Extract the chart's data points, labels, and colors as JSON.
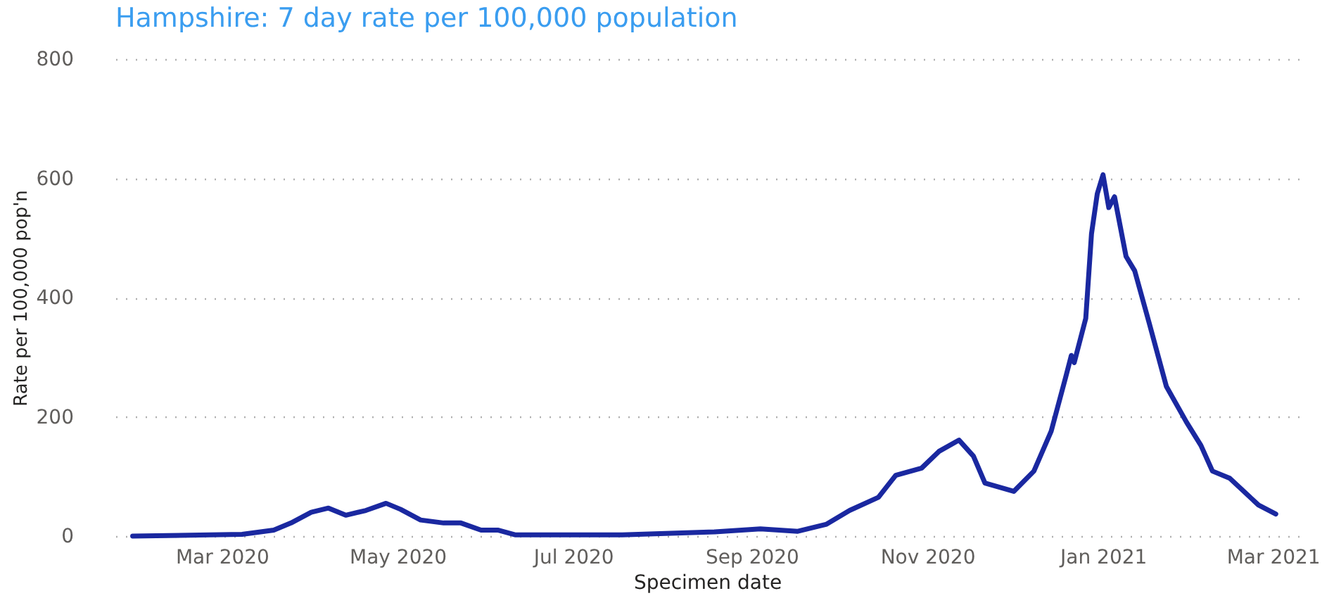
{
  "chart_data": {
    "type": "line",
    "title": "Hampshire: 7 day rate per 100,000 population",
    "xlabel": "Specimen date",
    "ylabel": "Rate per 100,000 pop'n",
    "x": [
      "2020-01-30",
      "2020-03-08",
      "2020-03-19",
      "2020-03-25",
      "2020-04-01",
      "2020-04-07",
      "2020-04-13",
      "2020-04-20",
      "2020-04-27",
      "2020-05-02",
      "2020-05-09",
      "2020-05-17",
      "2020-05-23",
      "2020-05-30",
      "2020-06-05",
      "2020-06-11",
      "2020-07-18",
      "2020-08-19",
      "2020-09-04",
      "2020-09-17",
      "2020-09-27",
      "2020-10-05",
      "2020-10-15",
      "2020-10-21",
      "2020-10-30",
      "2020-11-05",
      "2020-11-12",
      "2020-11-17",
      "2020-11-21",
      "2020-12-01",
      "2020-12-08",
      "2020-12-14",
      "2020-12-19",
      "2020-12-21",
      "2020-12-22",
      "2020-12-26",
      "2020-12-28",
      "2020-12-30",
      "2021-01-01",
      "2021-01-03",
      "2021-01-05",
      "2021-01-09",
      "2021-01-12",
      "2021-01-17",
      "2021-01-23",
      "2021-01-30",
      "2021-02-04",
      "2021-02-08",
      "2021-02-14",
      "2021-02-24",
      "2021-03-02"
    ],
    "series": [
      {
        "color": "#1a28a0",
        "values": [
          0,
          3,
          10,
          22,
          40,
          47,
          35,
          43,
          55,
          45,
          27,
          22,
          22,
          10,
          10,
          2,
          2,
          7,
          12,
          8,
          20,
          43,
          65,
          102,
          114,
          142,
          161,
          134,
          89,
          75,
          109,
          176,
          266,
          303,
          291,
          365,
          507,
          574,
          606,
          551,
          569,
          469,
          445,
          358,
          251,
          191,
          152,
          109,
          97,
          52,
          37
        ]
      }
    ],
    "xlim": [
      "2020-01-24",
      "2021-03-10"
    ],
    "xticks": [
      {
        "value": "2020-03-01",
        "label": "Mar 2020"
      },
      {
        "value": "2020-05-01",
        "label": "May 2020"
      },
      {
        "value": "2020-07-01",
        "label": "Jul 2020"
      },
      {
        "value": "2020-09-01",
        "label": "Sep 2020"
      },
      {
        "value": "2020-11-01",
        "label": "Nov 2020"
      },
      {
        "value": "2021-01-01",
        "label": "Jan 2021"
      },
      {
        "value": "2021-03-01",
        "label": "Mar 2021"
      }
    ],
    "ylim": [
      0,
      800
    ],
    "yticks": [
      0,
      200,
      400,
      600,
      800
    ],
    "grid": "y",
    "marker": "none",
    "line_style": "solid"
  }
}
